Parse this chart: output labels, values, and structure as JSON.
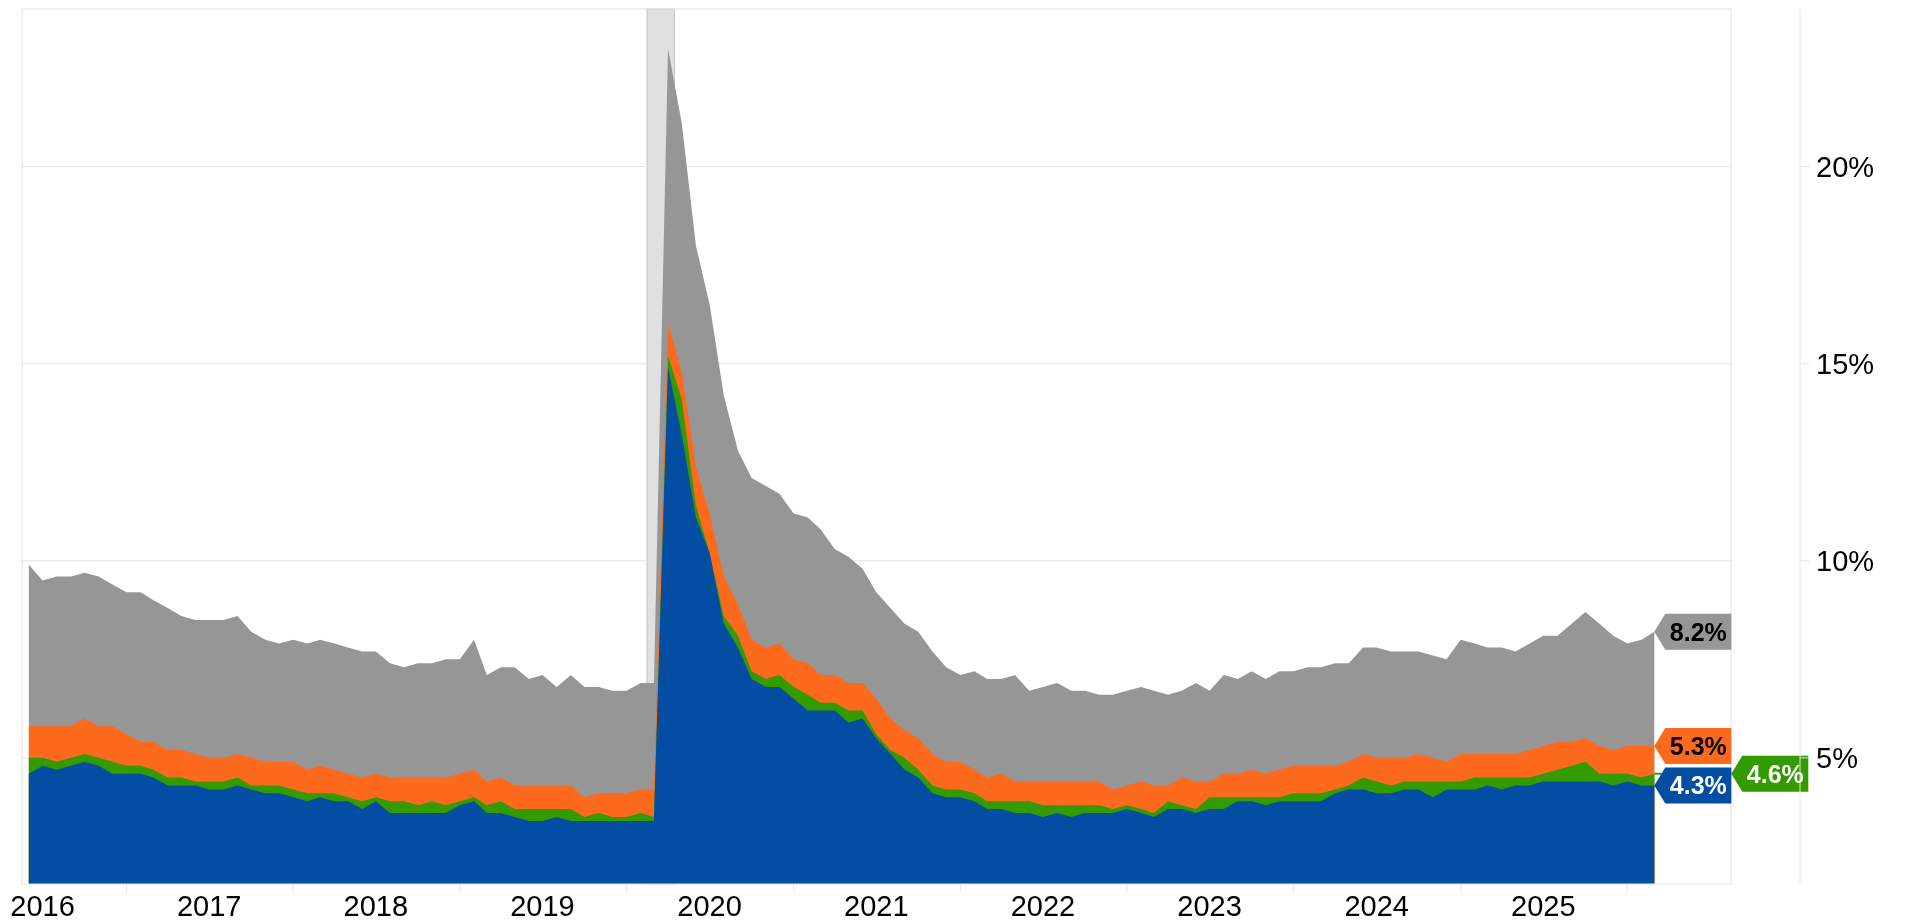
{
  "chart_data": {
    "type": "area",
    "x": [
      "2016-06",
      "2016-07",
      "2016-08",
      "2016-09",
      "2016-10",
      "2016-11",
      "2016-12",
      "2017-01",
      "2017-02",
      "2017-03",
      "2017-04",
      "2017-05",
      "2017-06",
      "2017-07",
      "2017-08",
      "2017-09",
      "2017-10",
      "2017-11",
      "2017-12",
      "2018-01",
      "2018-02",
      "2018-03",
      "2018-04",
      "2018-05",
      "2018-06",
      "2018-07",
      "2018-08",
      "2018-09",
      "2018-10",
      "2018-11",
      "2018-12",
      "2019-01",
      "2019-02",
      "2019-03",
      "2019-04",
      "2019-05",
      "2019-06",
      "2019-07",
      "2019-08",
      "2019-09",
      "2019-10",
      "2019-11",
      "2019-12",
      "2020-01",
      "2020-02",
      "2020-03",
      "2020-04",
      "2020-05",
      "2020-06",
      "2020-07",
      "2020-08",
      "2020-09",
      "2020-10",
      "2020-11",
      "2020-12",
      "2021-01",
      "2021-02",
      "2021-03",
      "2021-04",
      "2021-05",
      "2021-06",
      "2021-07",
      "2021-08",
      "2021-09",
      "2021-10",
      "2021-11",
      "2021-12",
      "2022-01",
      "2022-02",
      "2022-03",
      "2022-04",
      "2022-05",
      "2022-06",
      "2022-07",
      "2022-08",
      "2022-09",
      "2022-10",
      "2022-11",
      "2022-12",
      "2023-01",
      "2023-02",
      "2023-03",
      "2023-04",
      "2023-05",
      "2023-06",
      "2023-07",
      "2023-08",
      "2023-09",
      "2023-10",
      "2023-11",
      "2023-12",
      "2024-01",
      "2024-02",
      "2024-03",
      "2024-04",
      "2024-05",
      "2024-06",
      "2024-07",
      "2024-08",
      "2024-09",
      "2024-10",
      "2024-11",
      "2024-12",
      "2025-01",
      "2025-02",
      "2025-03",
      "2025-04",
      "2025-05",
      "2025-06",
      "2025-07",
      "2025-08",
      "2025-09",
      "2025-10",
      "2025-11",
      "2025-12",
      "2026-01",
      "2026-02",
      "2026-03"
    ],
    "series": [
      {
        "color": "#969696",
        "values": [
          9.9,
          9.5,
          9.6,
          9.6,
          9.7,
          9.6,
          9.4,
          9.2,
          9.2,
          9.0,
          8.8,
          8.6,
          8.5,
          8.5,
          8.5,
          8.6,
          8.2,
          8.0,
          7.9,
          8.0,
          7.9,
          8.0,
          7.9,
          7.8,
          7.7,
          7.7,
          7.4,
          7.3,
          7.4,
          7.4,
          7.5,
          7.5,
          8.0,
          7.1,
          7.3,
          7.3,
          7.0,
          7.1,
          6.8,
          7.1,
          6.8,
          6.8,
          6.7,
          6.7,
          6.9,
          6.9,
          23.0,
          21.1,
          18.0,
          16.5,
          14.2,
          12.8,
          12.1,
          11.9,
          11.7,
          11.2,
          11.1,
          10.8,
          10.3,
          10.1,
          9.8,
          9.2,
          8.8,
          8.4,
          8.2,
          7.7,
          7.3,
          7.1,
          7.2,
          7.0,
          7.0,
          7.1,
          6.7,
          6.8,
          6.9,
          6.7,
          6.7,
          6.6,
          6.6,
          6.7,
          6.8,
          6.7,
          6.6,
          6.7,
          6.9,
          6.7,
          7.1,
          7.0,
          7.2,
          7.0,
          7.2,
          7.2,
          7.3,
          7.3,
          7.4,
          7.4,
          7.8,
          7.8,
          7.7,
          7.7,
          7.7,
          7.6,
          7.5,
          8.0,
          7.9,
          7.8,
          7.8,
          7.7,
          7.9,
          8.1,
          8.1,
          8.4,
          8.7,
          8.4,
          8.1,
          7.9,
          8.0,
          8.2
        ],
        "value_labels": [
          null,
          null,
          null,
          null,
          null,
          null,
          null,
          null,
          null,
          null,
          null,
          null,
          null,
          null,
          null,
          null,
          null,
          null,
          null,
          null,
          null,
          null,
          null,
          null,
          null,
          null,
          null,
          null,
          null,
          null,
          null,
          null,
          null,
          null,
          null,
          null,
          null,
          null,
          null,
          null,
          null,
          null,
          null,
          null,
          null,
          null,
          null,
          null,
          null,
          null,
          null,
          null,
          null,
          null,
          null,
          null,
          null,
          null,
          null,
          null,
          null,
          null,
          null,
          null,
          null,
          null,
          null,
          null,
          null,
          null,
          null,
          null,
          null,
          null,
          null,
          null,
          null,
          null,
          null,
          null,
          null,
          null,
          null,
          null,
          null,
          null,
          null,
          null,
          null,
          null,
          null,
          null,
          null,
          null,
          null,
          null,
          null,
          null,
          null,
          null,
          null,
          null,
          null,
          null,
          null,
          null,
          null,
          null,
          null,
          null,
          null,
          null,
          null,
          null,
          null,
          null,
          null,
          "8.2%"
        ]
      },
      {
        "color": "#fd6a1e",
        "values": [
          5.8,
          5.8,
          5.8,
          5.8,
          6.0,
          5.8,
          5.8,
          5.6,
          5.4,
          5.4,
          5.2,
          5.2,
          5.1,
          5.0,
          5.0,
          5.1,
          5.0,
          4.9,
          4.9,
          4.9,
          4.7,
          4.8,
          4.7,
          4.6,
          4.5,
          4.6,
          4.5,
          4.5,
          4.5,
          4.5,
          4.5,
          4.6,
          4.7,
          4.4,
          4.5,
          4.3,
          4.3,
          4.3,
          4.3,
          4.3,
          4.0,
          4.1,
          4.1,
          4.1,
          4.2,
          4.2,
          16.0,
          14.8,
          12.4,
          11.2,
          9.6,
          8.9,
          8.0,
          7.8,
          7.9,
          7.5,
          7.4,
          7.1,
          7.1,
          6.9,
          6.9,
          6.5,
          6.0,
          5.7,
          5.5,
          5.1,
          4.9,
          4.9,
          4.7,
          4.5,
          4.6,
          4.4,
          4.4,
          4.4,
          4.4,
          4.4,
          4.4,
          4.4,
          4.2,
          4.3,
          4.4,
          4.3,
          4.3,
          4.5,
          4.4,
          4.4,
          4.6,
          4.6,
          4.7,
          4.6,
          4.7,
          4.8,
          4.8,
          4.8,
          4.8,
          4.9,
          5.1,
          5.0,
          5.0,
          5.0,
          5.1,
          5.0,
          4.9,
          5.1,
          5.1,
          5.1,
          5.1,
          5.1,
          5.2,
          5.3,
          5.4,
          5.4,
          5.5,
          5.3,
          5.2,
          5.3,
          5.3,
          5.3
        ],
        "value_labels": [
          null,
          null,
          null,
          null,
          null,
          null,
          null,
          null,
          null,
          null,
          null,
          null,
          null,
          null,
          null,
          null,
          null,
          null,
          null,
          null,
          null,
          null,
          null,
          null,
          null,
          null,
          null,
          null,
          null,
          null,
          null,
          null,
          null,
          null,
          null,
          null,
          null,
          null,
          null,
          null,
          null,
          null,
          null,
          null,
          null,
          null,
          null,
          null,
          null,
          null,
          null,
          null,
          null,
          null,
          null,
          null,
          null,
          null,
          null,
          null,
          null,
          null,
          null,
          null,
          null,
          null,
          null,
          null,
          null,
          null,
          null,
          null,
          null,
          null,
          null,
          null,
          null,
          null,
          null,
          null,
          null,
          null,
          null,
          null,
          null,
          null,
          null,
          null,
          null,
          null,
          null,
          null,
          null,
          null,
          null,
          null,
          null,
          null,
          null,
          null,
          null,
          null,
          null,
          null,
          null,
          null,
          null,
          null,
          null,
          null,
          null,
          null,
          null,
          null,
          null,
          null,
          null,
          "5.3%"
        ]
      },
      {
        "color": "#339a00",
        "values": [
          5.0,
          5.0,
          4.9,
          5.0,
          5.1,
          5.0,
          4.9,
          4.8,
          4.8,
          4.7,
          4.5,
          4.5,
          4.4,
          4.4,
          4.4,
          4.5,
          4.3,
          4.3,
          4.3,
          4.2,
          4.1,
          4.1,
          4.1,
          4.0,
          3.9,
          4.0,
          3.9,
          3.9,
          3.8,
          3.9,
          3.8,
          3.9,
          4.0,
          3.8,
          3.9,
          3.7,
          3.7,
          3.7,
          3.7,
          3.7,
          3.5,
          3.6,
          3.5,
          3.5,
          3.6,
          3.5,
          15.2,
          14.1,
          11.4,
          10.2,
          8.6,
          8.1,
          7.2,
          7.0,
          7.1,
          6.8,
          6.6,
          6.4,
          6.4,
          6.2,
          6.2,
          5.6,
          5.2,
          5.0,
          4.7,
          4.3,
          4.2,
          4.2,
          4.1,
          3.9,
          3.9,
          3.9,
          3.9,
          3.8,
          3.8,
          3.8,
          3.8,
          3.8,
          3.7,
          3.8,
          3.7,
          3.6,
          3.9,
          3.8,
          3.7,
          4.0,
          4.0,
          4.0,
          4.0,
          4.0,
          4.0,
          4.1,
          4.1,
          4.1,
          4.2,
          4.3,
          4.5,
          4.4,
          4.3,
          4.4,
          4.4,
          4.4,
          4.4,
          4.4,
          4.5,
          4.5,
          4.5,
          4.5,
          4.5,
          4.6,
          4.7,
          4.8,
          4.9,
          4.6,
          4.6,
          4.6,
          4.5,
          4.6
        ],
        "value_labels": [
          null,
          null,
          null,
          null,
          null,
          null,
          null,
          null,
          null,
          null,
          null,
          null,
          null,
          null,
          null,
          null,
          null,
          null,
          null,
          null,
          null,
          null,
          null,
          null,
          null,
          null,
          null,
          null,
          null,
          null,
          null,
          null,
          null,
          null,
          null,
          null,
          null,
          null,
          null,
          null,
          null,
          null,
          null,
          null,
          null,
          null,
          null,
          null,
          null,
          null,
          null,
          null,
          null,
          null,
          null,
          null,
          null,
          null,
          null,
          null,
          null,
          null,
          null,
          null,
          null,
          null,
          null,
          null,
          null,
          null,
          null,
          null,
          null,
          null,
          null,
          null,
          null,
          null,
          null,
          null,
          null,
          null,
          null,
          null,
          null,
          null,
          null,
          null,
          null,
          null,
          null,
          null,
          null,
          null,
          null,
          null,
          null,
          null,
          null,
          null,
          null,
          null,
          null,
          null,
          null,
          null,
          null,
          null,
          null,
          null,
          null,
          null,
          null,
          null,
          null,
          null,
          null,
          "4.6%"
        ]
      },
      {
        "color": "#034ea2",
        "values": [
          4.6,
          4.8,
          4.7,
          4.8,
          4.9,
          4.8,
          4.6,
          4.6,
          4.6,
          4.5,
          4.3,
          4.3,
          4.3,
          4.2,
          4.2,
          4.3,
          4.2,
          4.1,
          4.1,
          4.0,
          3.9,
          4.0,
          3.9,
          3.9,
          3.7,
          3.9,
          3.6,
          3.6,
          3.6,
          3.6,
          3.6,
          3.8,
          3.9,
          3.6,
          3.6,
          3.5,
          3.4,
          3.4,
          3.5,
          3.4,
          3.4,
          3.4,
          3.4,
          3.4,
          3.4,
          3.4,
          14.9,
          13.2,
          11.1,
          10.2,
          8.4,
          7.8,
          7.0,
          6.8,
          6.8,
          6.5,
          6.2,
          6.2,
          6.2,
          5.9,
          6.0,
          5.5,
          5.1,
          4.7,
          4.5,
          4.1,
          4.0,
          4.0,
          3.9,
          3.7,
          3.7,
          3.6,
          3.6,
          3.5,
          3.6,
          3.5,
          3.6,
          3.6,
          3.6,
          3.7,
          3.6,
          3.5,
          3.7,
          3.7,
          3.6,
          3.7,
          3.7,
          3.9,
          3.9,
          3.8,
          3.9,
          3.9,
          3.9,
          3.9,
          4.1,
          4.2,
          4.2,
          4.1,
          4.1,
          4.2,
          4.2,
          4.0,
          4.2,
          4.2,
          4.2,
          4.3,
          4.2,
          4.3,
          4.3,
          4.4,
          4.4,
          4.4,
          4.4,
          4.4,
          4.3,
          4.4,
          4.3,
          4.3
        ],
        "value_labels": [
          null,
          null,
          null,
          null,
          null,
          null,
          null,
          null,
          null,
          null,
          null,
          null,
          null,
          null,
          null,
          null,
          null,
          null,
          null,
          null,
          null,
          null,
          null,
          null,
          null,
          null,
          null,
          null,
          null,
          null,
          null,
          null,
          null,
          null,
          null,
          null,
          null,
          null,
          null,
          null,
          null,
          null,
          null,
          null,
          null,
          null,
          null,
          null,
          null,
          null,
          null,
          null,
          null,
          null,
          null,
          null,
          null,
          null,
          null,
          null,
          null,
          null,
          null,
          null,
          null,
          null,
          null,
          null,
          null,
          null,
          null,
          null,
          null,
          null,
          null,
          null,
          null,
          null,
          null,
          null,
          null,
          null,
          null,
          null,
          null,
          null,
          null,
          null,
          null,
          null,
          null,
          null,
          null,
          null,
          null,
          null,
          null,
          null,
          null,
          null,
          null,
          null,
          null,
          null,
          null,
          null,
          null,
          null,
          null,
          null,
          null,
          null,
          null,
          null,
          null,
          null,
          null,
          "4.3%"
        ]
      }
    ],
    "xlim": [
      "2016-05-17",
      "2026-08-16"
    ],
    "xticks": [
      {
        "value": "2016-07",
        "label": "2016"
      },
      {
        "value": "2017-07",
        "label": "2017"
      },
      {
        "value": "2018-07",
        "label": "2018"
      },
      {
        "value": "2019-07",
        "label": "2019"
      },
      {
        "value": "2020-07",
        "label": "2020"
      },
      {
        "value": "2021-07",
        "label": "2021"
      },
      {
        "value": "2022-07",
        "label": "2022"
      },
      {
        "value": "2023-07",
        "label": "2023"
      },
      {
        "value": "2024-07",
        "label": "2024"
      },
      {
        "value": "2025-07",
        "label": "2025"
      },
      {
        "value": "2017-01",
        "label": null
      },
      {
        "value": "2018-01",
        "label": null
      },
      {
        "value": "2019-01",
        "label": null
      },
      {
        "value": "2020-01",
        "label": null
      },
      {
        "value": "2021-01",
        "label": null
      },
      {
        "value": "2022-01",
        "label": null
      },
      {
        "value": "2023-01",
        "label": null
      },
      {
        "value": "2024-01",
        "label": null
      },
      {
        "value": "2025-01",
        "label": null
      },
      {
        "value": "2026-01",
        "label": null
      }
    ],
    "ylim": [
      1.8,
      24
    ],
    "yticks": [
      {
        "value": 5,
        "label": "5%"
      },
      {
        "value": 10,
        "label": "10%"
      },
      {
        "value": 15,
        "label": "15%"
      },
      {
        "value": 20,
        "label": "20%"
      }
    ],
    "grid": "y",
    "bands": [
      {
        "axis": "x",
        "from": "2020-02-15",
        "to": "2020-04-15",
        "color": "#e0e0e0"
      }
    ]
  }
}
